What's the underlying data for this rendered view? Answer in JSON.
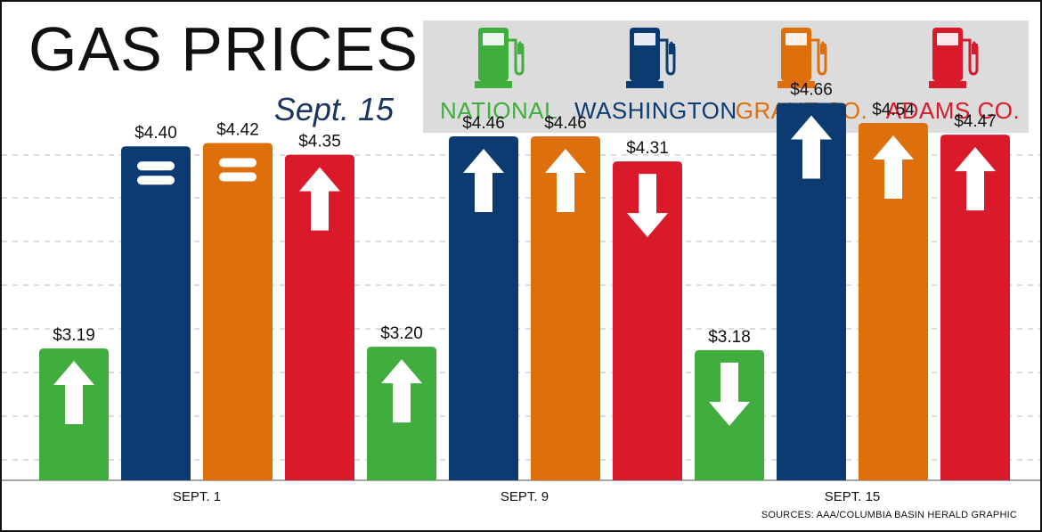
{
  "header": {
    "title": "GAS PRICES",
    "subtitle": "Sept. 15"
  },
  "legend": [
    {
      "name": "NATIONAL",
      "color": "#3fae3f",
      "icon": "gas-pump-icon"
    },
    {
      "name": "WASHINGTON",
      "color": "#0b3b70",
      "icon": "gas-pump-icon"
    },
    {
      "name": "GRANT CO.",
      "color": "#de6f0d",
      "icon": "gas-pump-icon"
    },
    {
      "name": "ADAMS CO.",
      "color": "#d81a2b",
      "icon": "gas-pump-icon"
    }
  ],
  "source": "SOURCES: AAA/COLUMBIA BASIN HERALD GRAPHIC",
  "chart_data": {
    "type": "bar",
    "categories": [
      "SEPT. 1",
      "SEPT. 9",
      "SEPT. 15"
    ],
    "series": [
      {
        "name": "NATIONAL",
        "color": "#3fae3f",
        "values": [
          3.19,
          3.2,
          3.18
        ],
        "labels": [
          "$3.19",
          "$3.20",
          "$3.18"
        ],
        "trend": [
          "up",
          "up",
          "down"
        ]
      },
      {
        "name": "WASHINGTON",
        "color": "#0b3b70",
        "values": [
          4.4,
          4.46,
          4.66
        ],
        "labels": [
          "$4.40",
          "$4.46",
          "$4.66"
        ],
        "trend": [
          "same",
          "up",
          "up"
        ]
      },
      {
        "name": "GRANT CO.",
        "color": "#de6f0d",
        "values": [
          4.42,
          4.46,
          4.54
        ],
        "labels": [
          "$4.42",
          "$4.46",
          "$4.54"
        ],
        "trend": [
          "same",
          "up",
          "up"
        ]
      },
      {
        "name": "ADAMS CO.",
        "color": "#d81a2b",
        "values": [
          4.35,
          4.31,
          4.47
        ],
        "labels": [
          "$4.35",
          "$4.31",
          "$4.47"
        ],
        "trend": [
          "up",
          "down",
          "up"
        ]
      }
    ],
    "grid": true
  }
}
